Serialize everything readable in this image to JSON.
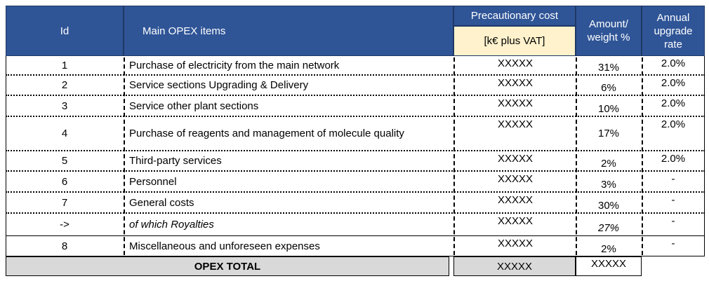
{
  "header": {
    "id": "Id",
    "items": "Main OPEX items",
    "cost": "Precautionary cost",
    "cost_unit": "[k€ plus VAT]",
    "amount": "Amount/ weight %",
    "rate": "Annual upgrade rate"
  },
  "rows": [
    {
      "id": "1",
      "item": "Purchase of electricity from the main network",
      "cost": "XXXXX",
      "amount": "31%",
      "rate": "2.0%"
    },
    {
      "id": "2",
      "item": "Service sections Upgrading & Delivery",
      "cost": "XXXXX",
      "amount": "6%",
      "rate": "2.0%"
    },
    {
      "id": "3",
      "item": "Service other plant sections",
      "cost": "XXXXX",
      "amount": "10%",
      "rate": "2.0%"
    },
    {
      "id": "4",
      "item": "Purchase of reagents and management of molecule quality",
      "cost": "XXXXX",
      "amount": "17%",
      "rate": "2.0%"
    },
    {
      "id": "5",
      "item": "Third-party services",
      "cost": "XXXXX",
      "amount": "2%",
      "rate": "2.0%"
    },
    {
      "id": "6",
      "item": "Personnel",
      "cost": "XXXXX",
      "amount": "3%",
      "rate": "-"
    },
    {
      "id": "7",
      "item": "General costs",
      "cost": "XXXXX",
      "amount": "30%",
      "rate": "-"
    },
    {
      "id": "->",
      "item": "of which Royalties",
      "cost": "XXXXX",
      "amount": "27%",
      "rate": "-"
    },
    {
      "id": "8",
      "item": "Miscellaneous and unforeseen expenses",
      "cost": "XXXXX",
      "amount": "2%",
      "rate": "-"
    }
  ],
  "total": {
    "label": "OPEX TOTAL",
    "cost": "XXXXX",
    "amount": "XXXXX"
  }
}
